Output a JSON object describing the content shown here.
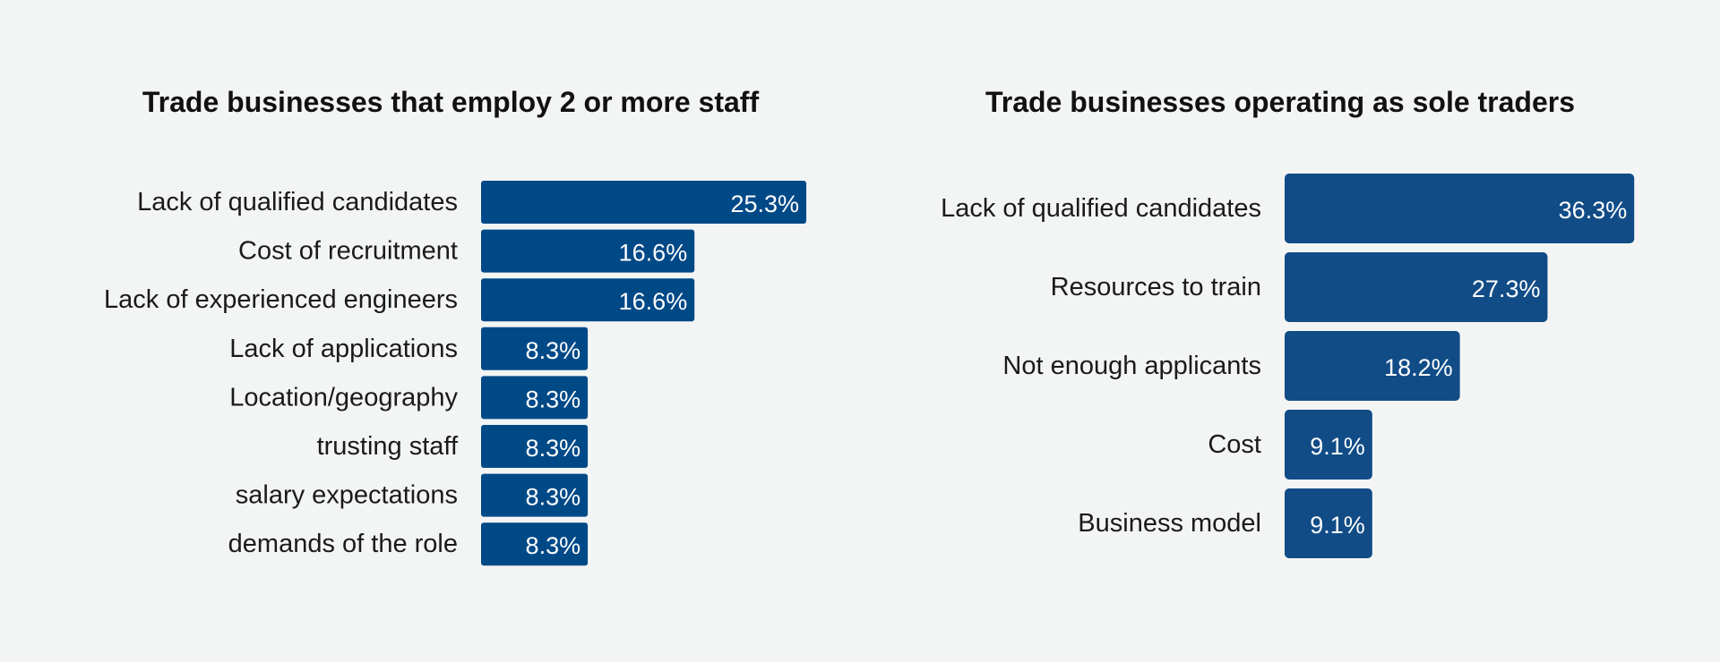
{
  "chart_data": [
    {
      "type": "bar",
      "orientation": "horizontal",
      "title": "Trade businesses that employ 2 or more staff",
      "categories": [
        "Lack of qualified candidates",
        "Cost of recruitment",
        "Lack of experienced engineers",
        "Lack of applications",
        "Location/geography",
        "trusting staff",
        "salary expectations",
        "demands of the role"
      ],
      "values": [
        25.3,
        16.6,
        16.6,
        8.3,
        8.3,
        8.3,
        8.3,
        8.3
      ],
      "value_labels": [
        "25.3%",
        "16.6%",
        "16.6%",
        "8.3%",
        "8.3%",
        "8.3%",
        "8.3%",
        "8.3%"
      ],
      "color": "#004987",
      "grid": false,
      "legend": "none"
    },
    {
      "type": "bar",
      "orientation": "horizontal",
      "title": "Trade businesses operating as sole traders",
      "categories": [
        "Lack of qualified candidates",
        "Resources to train",
        "Not enough applicants",
        "Cost",
        "Business model"
      ],
      "values": [
        36.3,
        27.3,
        18.2,
        9.1,
        9.1
      ],
      "value_labels": [
        "36.3%",
        "27.3%",
        "18.2%",
        "9.1%",
        "9.1%"
      ],
      "color": "#114c87",
      "grid": false,
      "legend": "none"
    }
  ]
}
